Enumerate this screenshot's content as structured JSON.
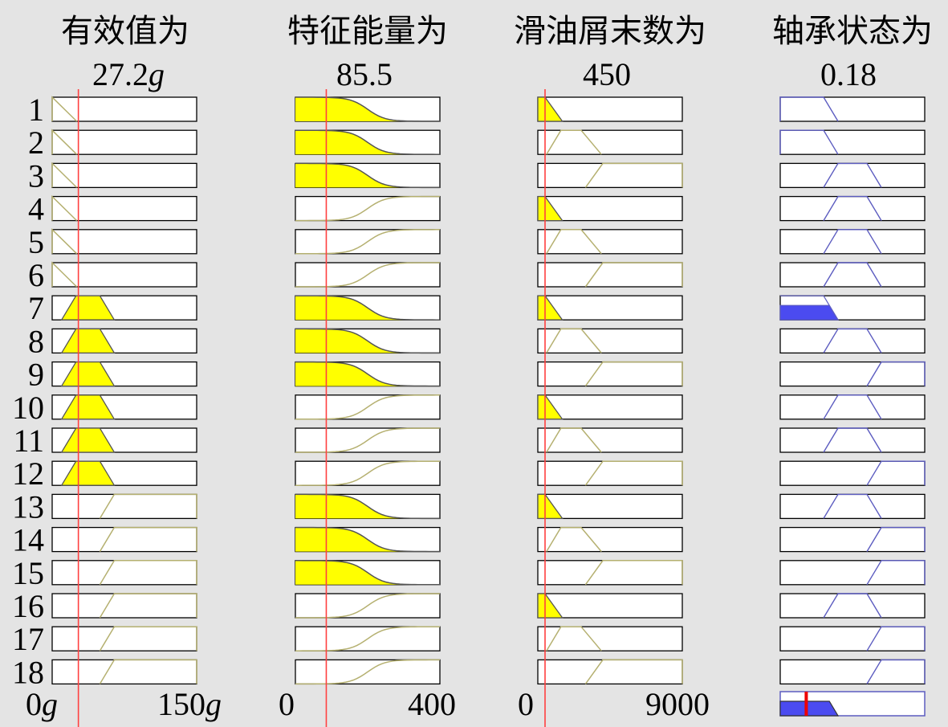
{
  "colors": {
    "background": "#e4e4e4",
    "input_fill": "#ffff00",
    "input_line": "#b5b070",
    "input_active_edge": "#555555",
    "output_line": "#5c5cc0",
    "output_fill": "#4b4bf0",
    "marker": "#ff4040",
    "output_marker": "#ee0000"
  },
  "rule_labels": [
    "1",
    "2",
    "3",
    "4",
    "5",
    "6",
    "7",
    "8",
    "9",
    "10",
    "11",
    "12",
    "13",
    "14",
    "15",
    "16",
    "17",
    "18"
  ],
  "columns": [
    {
      "title": "有效值为",
      "value_main": "27.2",
      "value_unit": "g",
      "axis_min_main": "0",
      "axis_min_unit": "g",
      "axis_max_main": "150",
      "axis_max_unit": "g",
      "range": [
        0,
        150
      ],
      "input_value": 27.2,
      "rule_mf": [
        "low",
        "low",
        "low",
        "low",
        "low",
        "low",
        "mid",
        "mid",
        "mid",
        "mid",
        "mid",
        "mid",
        "high",
        "high",
        "high",
        "high",
        "high",
        "high"
      ]
    },
    {
      "title": "特征能量为",
      "value_main": "85.5",
      "value_unit": "",
      "axis_min_main": "0",
      "axis_min_unit": "",
      "axis_max_main": "400",
      "axis_max_unit": "",
      "range": [
        0,
        400
      ],
      "input_value": 85.5,
      "rule_mf": [
        "low",
        "low",
        "low",
        "high",
        "high",
        "high",
        "low",
        "low",
        "low",
        "high",
        "high",
        "high",
        "low",
        "low",
        "low",
        "high",
        "high",
        "high"
      ]
    },
    {
      "title": "滑油屑末数为",
      "value_main": "450",
      "value_unit": "",
      "axis_min_main": "0",
      "axis_min_unit": "",
      "axis_max_main": "9000",
      "axis_max_unit": "",
      "range": [
        0,
        9000
      ],
      "input_value": 450,
      "rule_mf": [
        "low",
        "mid",
        "high",
        "low",
        "mid",
        "high",
        "low",
        "mid",
        "high",
        "low",
        "mid",
        "high",
        "low",
        "mid",
        "high",
        "low",
        "mid",
        "high"
      ]
    },
    {
      "title": "轴承状态为",
      "value_main": "0.18",
      "value_unit": "",
      "range": [
        0,
        1
      ],
      "output_value": 0.18,
      "rule_mf": [
        "low",
        "low",
        "mid",
        "mid",
        "mid",
        "mid",
        "low",
        "mid",
        "high",
        "mid",
        "mid",
        "high",
        "mid",
        "high",
        "high",
        "mid",
        "high",
        "high"
      ],
      "rule_firing": [
        0,
        0,
        0,
        0,
        0,
        0,
        0.6,
        0,
        0,
        0,
        0,
        0,
        0,
        0,
        0,
        0,
        0,
        0
      ]
    }
  ]
}
